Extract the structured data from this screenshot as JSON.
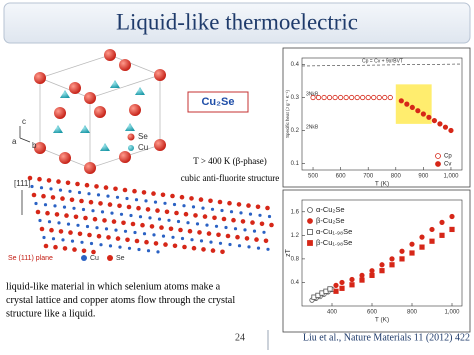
{
  "header": {
    "title": "Liquid-like thermoelectric"
  },
  "structure": {
    "axis_a": "a",
    "axis_b": "b",
    "axis_c": "c",
    "legend_se": "Se",
    "legend_cu": "Cu"
  },
  "compound": {
    "formula": "Cu₂Se",
    "phase": "T > 400 K (β-phase)",
    "structure": "cubic anti-fluorite structure"
  },
  "layers": {
    "direction": "[111]",
    "plane": "Se (111) plane",
    "legend_cu": "Cu",
    "legend_se": "Se"
  },
  "description": {
    "lines": [
      "liquid-like material in which selenium atoms make a",
      "crystal lattice and copper atoms flow through the crystal",
      "structure like a liquid."
    ]
  },
  "footer": {
    "page": "24",
    "citation": "Liu et al., Nature Materials 11 (2012) 422"
  },
  "chart_data": [
    {
      "type": "scatter",
      "x_label": "T (K)",
      "y_label": "Specific heat (J g⁻¹ K⁻¹)",
      "xlim": [
        460,
        1040
      ],
      "ylim": [
        0.08,
        0.42
      ],
      "xticks": [
        500,
        600,
        700,
        800,
        900,
        {
          "value": 1000,
          "label": "1,000"
        }
      ],
      "yticks": [
        0.1,
        0.2,
        0.3,
        0.4
      ],
      "annotations": [
        "Cp = Cv + 9α²BVT",
        "3NkB",
        "2NkB"
      ],
      "legend": "lower right",
      "series": [
        {
          "name": "Cp",
          "color": "#d62718",
          "marker": "circle",
          "filled": false,
          "x": [
            500,
            520,
            540,
            560,
            580,
            600,
            620,
            640,
            660,
            680,
            700,
            720,
            740,
            760,
            780
          ],
          "values": [
            0.3,
            0.3,
            0.3,
            0.3,
            0.3,
            0.3,
            0.3,
            0.3,
            0.3,
            0.3,
            0.3,
            0.3,
            0.3,
            0.3,
            0.3
          ]
        },
        {
          "name": "Cv",
          "color": "#d62718",
          "marker": "circle",
          "filled": true,
          "x": [
            820,
            840,
            860,
            880,
            900,
            920,
            940,
            960,
            980,
            1000
          ],
          "values": [
            0.29,
            0.28,
            0.27,
            0.26,
            0.25,
            0.24,
            0.23,
            0.22,
            0.21,
            0.2
          ]
        }
      ]
    },
    {
      "type": "scatter",
      "x_label": "T (K)",
      "y_label": "zT",
      "xlim": [
        250,
        1050
      ],
      "ylim": [
        0,
        1.8
      ],
      "xticks": [
        400,
        600,
        800,
        {
          "value": 1000,
          "label": "1,000"
        }
      ],
      "yticks": [
        0.4,
        0.8,
        1.2,
        1.6
      ],
      "legend": "upper left",
      "series": [
        {
          "name": "α-Cu₂Se",
          "color": "#555555",
          "marker": "circle",
          "filled": false,
          "x": [
            300,
            320,
            340,
            360,
            380,
            400
          ],
          "values": [
            0.1,
            0.13,
            0.16,
            0.2,
            0.24,
            0.28
          ]
        },
        {
          "name": "β-Cu₂Se",
          "color": "#d62718",
          "marker": "circle",
          "filled": true,
          "x": [
            420,
            450,
            500,
            550,
            600,
            650,
            700,
            750,
            800,
            850,
            900,
            950,
            1000
          ],
          "values": [
            0.35,
            0.4,
            0.45,
            0.52,
            0.6,
            0.7,
            0.8,
            0.93,
            1.05,
            1.17,
            1.3,
            1.42,
            1.52
          ]
        },
        {
          "name": "α-Cu₁.₉₈Se",
          "color": "#555555",
          "marker": "square",
          "filled": false,
          "x": [
            310,
            330,
            350,
            370,
            390
          ],
          "values": [
            0.15,
            0.18,
            0.22,
            0.25,
            0.29
          ]
        },
        {
          "name": "β-Cu₁.₉₈Se",
          "color": "#d62718",
          "marker": "square",
          "filled": true,
          "x": [
            420,
            450,
            500,
            550,
            600,
            650,
            700,
            750,
            800,
            850,
            900,
            950,
            1000
          ],
          "values": [
            0.25,
            0.3,
            0.36,
            0.44,
            0.52,
            0.6,
            0.7,
            0.8,
            0.9,
            1.0,
            1.1,
            1.2,
            1.3
          ]
        }
      ]
    }
  ]
}
